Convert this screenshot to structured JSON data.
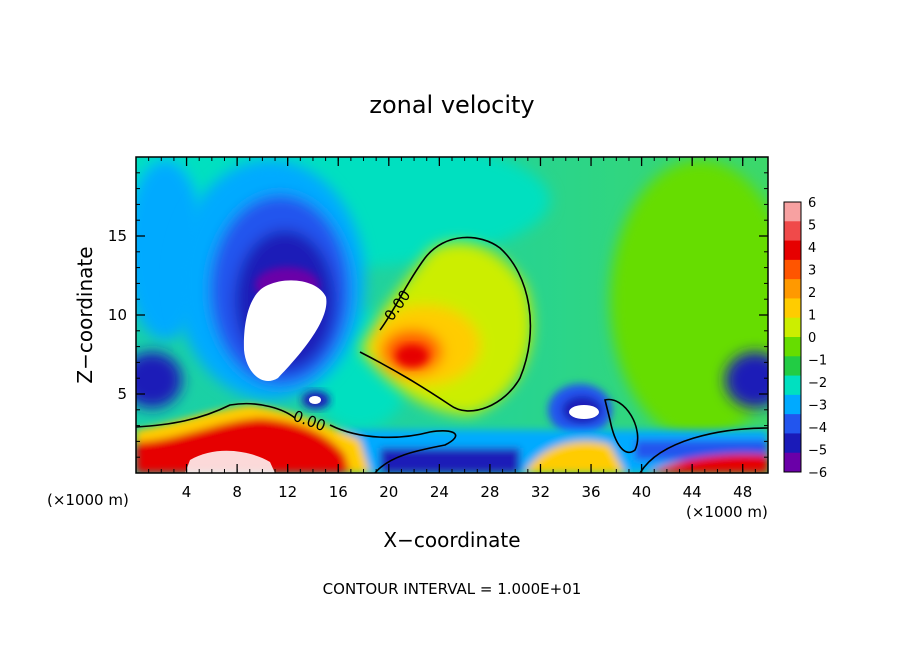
{
  "chart_data": {
    "type": "heatmap",
    "title": "zonal velocity",
    "xlabel": "X−coordinate",
    "ylabel": "Z−coordinate",
    "x_unit_label": "(×1000 m)",
    "y_unit_label": "(×1000 m)",
    "footer": "CONTOUR INTERVAL = 1.000E+01",
    "xlim": [
      0,
      50
    ],
    "ylim": [
      0,
      20
    ],
    "x_ticks": [
      4,
      8,
      12,
      16,
      20,
      24,
      28,
      32,
      36,
      40,
      44,
      48
    ],
    "y_ticks": [
      5,
      10,
      15
    ],
    "contour_labels": [
      "0.00",
      "0.00"
    ],
    "colorbar": {
      "labels": [
        "6",
        "5",
        "4",
        "3",
        "2",
        "1",
        "0",
        "−1",
        "−2",
        "−3",
        "−4",
        "−5",
        "−6"
      ],
      "colors": [
        "#f7a1a1",
        "#f04a4a",
        "#e60000",
        "#ff5500",
        "#ff9900",
        "#ffcc00",
        "#ccee00",
        "#66dd00",
        "#22cc44",
        "#00e0c0",
        "#00aaff",
        "#2255ee",
        "#1a1ab8",
        "#6a00a8"
      ]
    },
    "features": [
      {
        "name": "upper cyan background",
        "x": 25,
        "y": 17,
        "value": -1.5
      },
      {
        "name": "deep negative core over ridge",
        "x": 11,
        "y": 11,
        "value": -6
      },
      {
        "name": "masked white core",
        "x": 11.5,
        "y": 9,
        "value": null
      },
      {
        "name": "positive zero-contour dome",
        "x": 26,
        "y": 9,
        "value": 0.5
      },
      {
        "name": "positive max",
        "x": 21.5,
        "y": 7.2,
        "value": 4
      },
      {
        "name": "near-surface positive jet",
        "x": 10,
        "y": 1.5,
        "value": 6
      },
      {
        "name": "left edge negative pocket",
        "x": 0.5,
        "y": 5.5,
        "value": -4
      },
      {
        "name": "right edge negative pocket",
        "x": 49.5,
        "y": 5.5,
        "value": -4
      },
      {
        "name": "negative cell near 34 km",
        "x": 34.5,
        "y": 4,
        "value": -5
      }
    ]
  }
}
